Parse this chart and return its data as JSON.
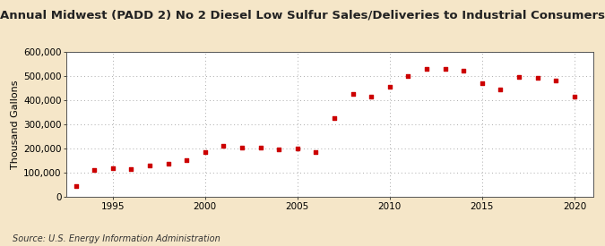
{
  "title": "Annual Midwest (PADD 2) No 2 Diesel Low Sulfur Sales/Deliveries to Industrial Consumers",
  "ylabel": "Thousand Gallons",
  "source": "Source: U.S. Energy Information Administration",
  "background_color": "#f5e6c8",
  "plot_bg_color": "#ffffff",
  "marker_color": "#cc0000",
  "years": [
    1993,
    1994,
    1995,
    1996,
    1997,
    1998,
    1999,
    2000,
    2001,
    2002,
    2003,
    2004,
    2005,
    2006,
    2007,
    2008,
    2009,
    2010,
    2011,
    2012,
    2013,
    2014,
    2015,
    2016,
    2017,
    2018,
    2019,
    2020
  ],
  "values": [
    45000,
    110000,
    120000,
    115000,
    130000,
    135000,
    150000,
    185000,
    210000,
    205000,
    205000,
    195000,
    200000,
    185000,
    325000,
    425000,
    415000,
    455000,
    500000,
    530000,
    530000,
    520000,
    470000,
    445000,
    495000,
    490000,
    480000,
    415000
  ],
  "ylim": [
    0,
    600000
  ],
  "yticks": [
    0,
    100000,
    200000,
    300000,
    400000,
    500000,
    600000
  ],
  "xlim": [
    1992.5,
    2021
  ],
  "xticks": [
    1995,
    2000,
    2005,
    2010,
    2015,
    2020
  ],
  "grid_color": "#aaaaaa",
  "title_fontsize": 9.5,
  "axis_fontsize": 8,
  "tick_fontsize": 7.5,
  "source_fontsize": 7
}
